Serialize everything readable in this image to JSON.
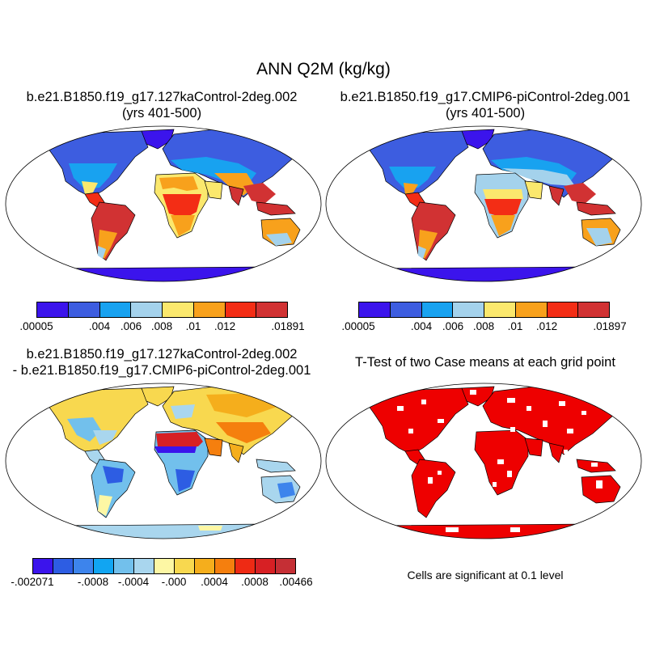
{
  "main_title": "ANN Q2M (kg/kg)",
  "panels": {
    "top_left": {
      "title_line1": "b.e21.B1850.f19_g17.127kaControl-2deg.002",
      "title_line2": "(yrs 401-500)",
      "colorbar": {
        "colors": [
          "#3b14ec",
          "#3d5de0",
          "#18a2f0",
          "#a4d2ec",
          "#fbe86d",
          "#f8a11c",
          "#f32d15",
          "#d13233"
        ],
        "tick_labels": [
          ".00005",
          ".004",
          ".006",
          ".008",
          ".01",
          ".012",
          ".01891"
        ]
      }
    },
    "top_right": {
      "title_line1": "b.e21.B1850.f19_g17.CMIP6-piControl-2deg.001",
      "title_line2": "(yrs 401-500)",
      "colorbar": {
        "colors": [
          "#3b14ec",
          "#3d5de0",
          "#18a2f0",
          "#a4d2ec",
          "#fbe86d",
          "#f8a11c",
          "#f32d15",
          "#d13233"
        ],
        "tick_labels": [
          ".00005",
          ".004",
          ".006",
          ".008",
          ".01",
          ".012",
          ".01897"
        ]
      }
    },
    "bottom_left": {
      "title_line1": "b.e21.B1850.f19_g17.127kaControl-2deg.002",
      "title_line2": "- b.e21.B1850.f19_g17.CMIP6-piControl-2deg.001",
      "colorbar": {
        "colors": [
          "#3b14ec",
          "#2d5de3",
          "#3d84ec",
          "#11a5f2",
          "#72c0ec",
          "#a9d6ee",
          "#fdf7a4",
          "#f8d84f",
          "#f5ae1c",
          "#f57f0e",
          "#ee2a14",
          "#d72024",
          "#c52f35"
        ],
        "tick_labels": [
          "-.002071",
          "-.0008",
          "-.0004",
          "-.000",
          ".0004",
          ".0008",
          ".00466"
        ]
      }
    },
    "bottom_right": {
      "title": "T-Test of two Case means at each grid point",
      "note": "Cells are significant at 0.1 level",
      "significant_color": "#ee0000"
    }
  },
  "colors": {
    "antarctica_abs": "#3b14ec",
    "antarctica_diff": "#a9d6ee",
    "ocean": "#ffffff",
    "outline": "#000000"
  }
}
